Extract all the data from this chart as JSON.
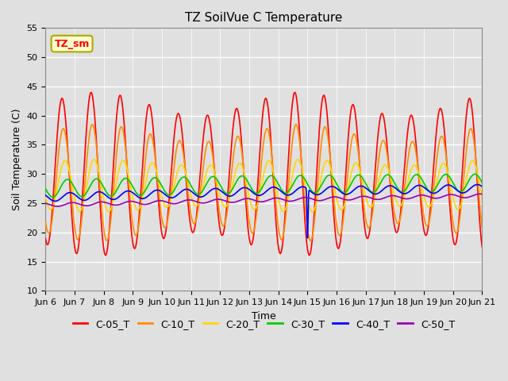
{
  "title": "TZ SoilVue C Temperature",
  "xlabel": "Time",
  "ylabel": "Soil Temperature (C)",
  "ylim": [
    10,
    55
  ],
  "yticks": [
    10,
    15,
    20,
    25,
    30,
    35,
    40,
    45,
    50,
    55
  ],
  "xtick_labels": [
    "Jun 6",
    "Jun 7",
    "Jun 8",
    "Jun 9",
    "Jun 10",
    "Jun 11",
    "Jun 12",
    "Jun 13",
    "Jun 14",
    "Jun 15",
    "Jun 16",
    "Jun 17",
    "Jun 18",
    "Jun 19",
    "Jun 20",
    "Jun 21"
  ],
  "series_colors": {
    "C-05_T": "#FF0000",
    "C-10_T": "#FF8C00",
    "C-20_T": "#FFD700",
    "C-30_T": "#00CC00",
    "C-40_T": "#0000FF",
    "C-50_T": "#9900BB"
  },
  "legend_label": "TZ_sm",
  "legend_box_facecolor": "#FFFFCC",
  "legend_box_edgecolor": "#AAAA00",
  "bg_color": "#E0E0E0",
  "grid_color": "#FFFFFF",
  "title_fontsize": 11,
  "axis_label_fontsize": 9,
  "tick_fontsize": 8,
  "legend_fontsize": 9,
  "line_width": 1.2
}
